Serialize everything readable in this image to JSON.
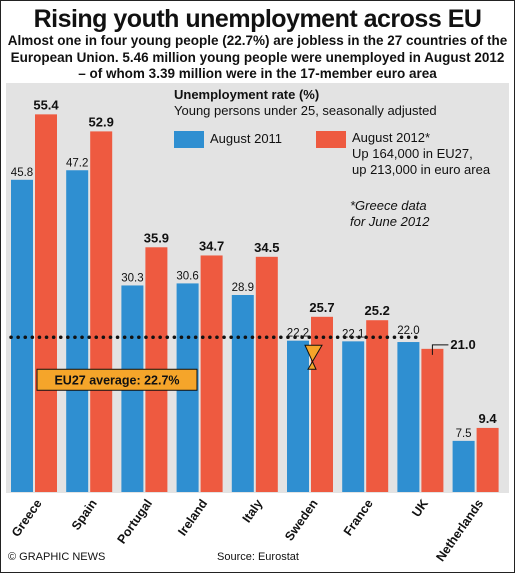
{
  "title": "Rising youth unemployment across EU",
  "subtitle": "Almost one in four young people (22.7%) are jobless in the 27 countries of the European Union. 5.46 million young people were unemployed in August 2012 – of whom 3.39 million were in the 17-member euro area",
  "footer": {
    "credit": "© GRAPHIC NEWS",
    "source": "Source: Eurostat"
  },
  "colors": {
    "aug2011": "#2f8fd1",
    "aug2012": "#ee5a40",
    "panel": "#e3e3e3",
    "avg_line": "#111111",
    "avg_box": "#f5a52a"
  },
  "legend": {
    "heading": "Unemployment rate (%)",
    "subheading": "Young persons under 25, seasonally adjusted",
    "aug2011_label": "August 2011",
    "aug2012_line1": "August 2012*",
    "aug2012_line2": "Up 164,000 in EU27,",
    "aug2012_line3": "up 213,000 in euro area"
  },
  "note": {
    "line1": "*Greece data",
    "line2": "for June 2012"
  },
  "chart_data": {
    "type": "bar",
    "categories": [
      "Greece",
      "Spain",
      "Portugal",
      "Ireland",
      "Italy",
      "Sweden",
      "France",
      "UK",
      "Netherlands"
    ],
    "series": [
      {
        "name": "August 2011",
        "values": [
          45.8,
          47.2,
          30.3,
          30.6,
          28.9,
          22.2,
          22.1,
          22.0,
          7.5
        ]
      },
      {
        "name": "August 2012*",
        "values": [
          55.4,
          52.9,
          35.9,
          34.7,
          34.5,
          25.7,
          25.2,
          21.0,
          9.4
        ]
      }
    ],
    "value_labels_2011": [
      "45.8",
      "47.2",
      "30.3",
      "30.6",
      "28.9",
      "22.2",
      "22.1",
      "22.0",
      "7.5"
    ],
    "value_labels_2012": [
      "55.4",
      "52.9",
      "35.9",
      "34.7",
      "34.5",
      "25.7",
      "25.2",
      "21.0",
      "9.4"
    ],
    "reference_line": {
      "value": 22.7,
      "label": "EU27 average: 22.7%"
    },
    "ylim": [
      0,
      60
    ],
    "grid": false,
    "legend_position": "top-right"
  }
}
